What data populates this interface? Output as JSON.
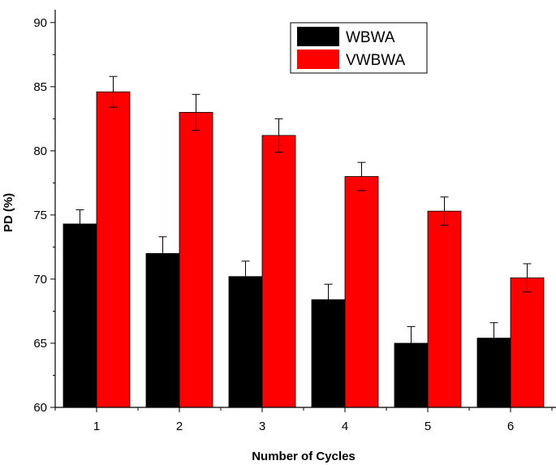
{
  "chart_data": {
    "type": "bar",
    "categories": [
      "1",
      "2",
      "3",
      "4",
      "5",
      "6"
    ],
    "series": [
      {
        "name": "WBWA",
        "color": "#000000",
        "values": [
          74.3,
          72.0,
          70.2,
          68.4,
          65.0,
          65.4
        ],
        "errors": [
          1.1,
          1.3,
          1.2,
          1.2,
          1.3,
          1.2
        ]
      },
      {
        "name": "VWBWA",
        "color": "#ff0000",
        "values": [
          84.6,
          83.0,
          81.2,
          78.0,
          75.3,
          70.1
        ],
        "errors": [
          1.2,
          1.4,
          1.3,
          1.1,
          1.1,
          1.1
        ]
      }
    ],
    "xlabel": "Number of Cycles",
    "ylabel": "PD (%)",
    "ylim": [
      60,
      91
    ],
    "yticks": [
      "60",
      "65",
      "70",
      "75",
      "80",
      "85",
      "90"
    ],
    "grid": false,
    "legend_position": "top-right"
  }
}
